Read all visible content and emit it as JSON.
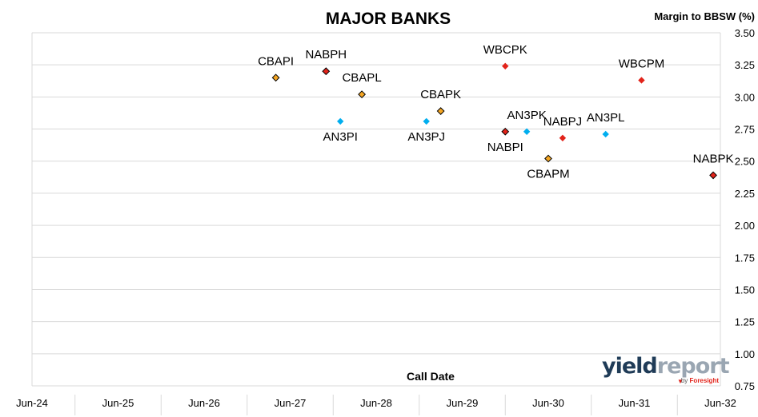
{
  "chart_data": {
    "type": "scatter",
    "title": "MAJOR BANKS",
    "xlabel": "Call Date",
    "ylabel": "Margin to BBSW (%)",
    "xlim": [
      "2024-06",
      "2032-06"
    ],
    "ylim": [
      0.75,
      3.5
    ],
    "y_ticks": [
      "0.75",
      "1.00",
      "1.25",
      "1.50",
      "1.75",
      "2.00",
      "2.25",
      "2.50",
      "2.75",
      "3.00",
      "3.25",
      "3.50"
    ],
    "x_ticks": [
      "Jun-24",
      "Jun-25",
      "Jun-26",
      "Jun-27",
      "Jun-28",
      "Jun-29",
      "Jun-30",
      "Jun-31",
      "Jun-32"
    ],
    "grid": "horizontal",
    "points": [
      {
        "label": "CBAPI",
        "x": "2027-04",
        "y": 3.15,
        "color": "#f5a623",
        "outline": true,
        "label_pos": "above"
      },
      {
        "label": "NABPH",
        "x": "2027-11",
        "y": 3.2,
        "color": "#e2231a",
        "outline": true,
        "label_pos": "above"
      },
      {
        "label": "CBAPL",
        "x": "2028-04",
        "y": 3.02,
        "color": "#f5a623",
        "outline": true,
        "label_pos": "above"
      },
      {
        "label": "AN3PI",
        "x": "2028-01",
        "y": 2.81,
        "color": "#00aeef",
        "outline": false,
        "label_pos": "below"
      },
      {
        "label": "WBCPK",
        "x": "2029-12",
        "y": 3.24,
        "color": "#e2231a",
        "outline": false,
        "label_pos": "above"
      },
      {
        "label": "CBAPK",
        "x": "2029-03",
        "y": 2.89,
        "color": "#f5a623",
        "outline": true,
        "label_pos": "above"
      },
      {
        "label": "AN3PJ",
        "x": "2029-01",
        "y": 2.81,
        "color": "#00aeef",
        "outline": false,
        "label_pos": "below"
      },
      {
        "label": "NABPI",
        "x": "2029-12",
        "y": 2.73,
        "color": "#e2231a",
        "outline": true,
        "label_pos": "below"
      },
      {
        "label": "AN3PK",
        "x": "2030-03",
        "y": 2.73,
        "color": "#00aeef",
        "outline": false,
        "label_pos": "above"
      },
      {
        "label": "CBAPM",
        "x": "2030-06",
        "y": 2.52,
        "color": "#f5a623",
        "outline": true,
        "label_pos": "below"
      },
      {
        "label": "NABPJ",
        "x": "2030-08",
        "y": 2.68,
        "color": "#e2231a",
        "outline": false,
        "label_pos": "above"
      },
      {
        "label": "AN3PL",
        "x": "2031-02",
        "y": 2.71,
        "color": "#00aeef",
        "outline": false,
        "label_pos": "above"
      },
      {
        "label": "WBCPM",
        "x": "2031-07",
        "y": 3.13,
        "color": "#e2231a",
        "outline": false,
        "label_pos": "above"
      },
      {
        "label": "NABPK",
        "x": "2032-05",
        "y": 2.39,
        "color": "#e2231a",
        "outline": true,
        "label_pos": "above"
      }
    ]
  },
  "logo": {
    "main_a": "yield",
    "main_b": "report",
    "by_prefix": "by",
    "by_brand": "Foresight"
  }
}
